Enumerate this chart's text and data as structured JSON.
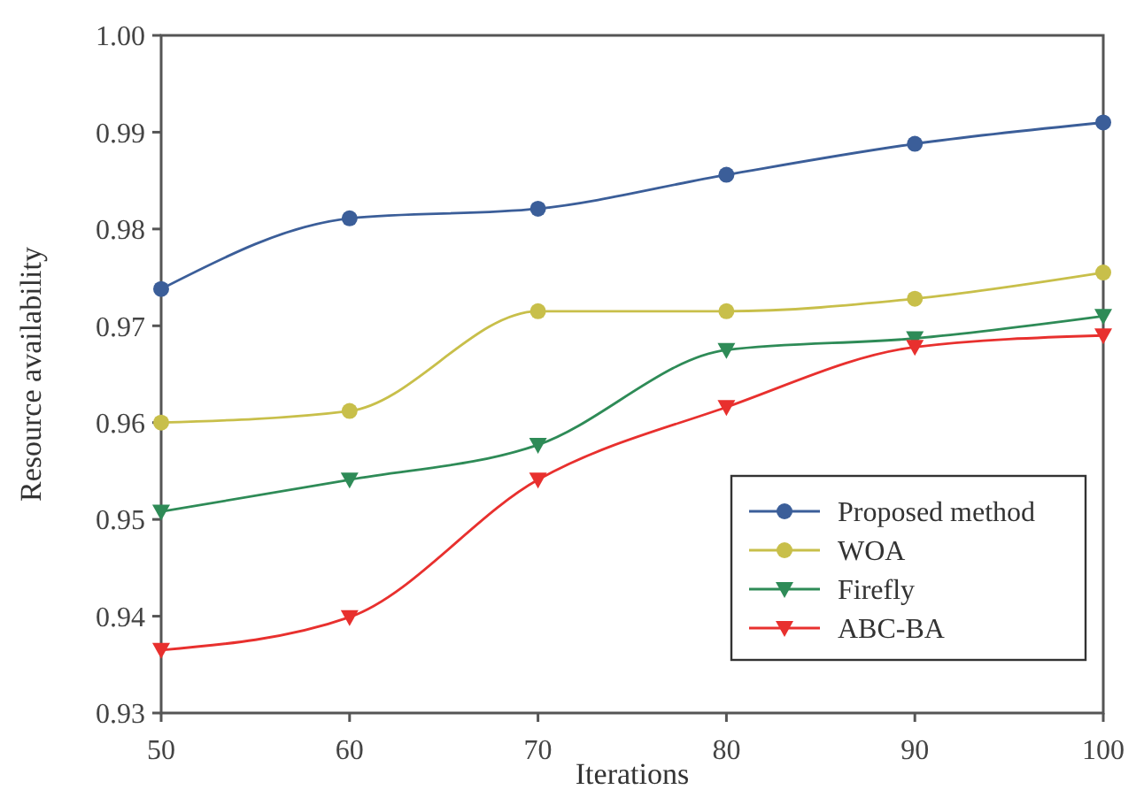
{
  "chart_data": {
    "type": "line",
    "xlabel": "Iterations",
    "ylabel": "Resource availability",
    "x": [
      50,
      60,
      70,
      80,
      90,
      100
    ],
    "xlim": [
      50,
      100
    ],
    "xticks": [
      50,
      60,
      70,
      80,
      90,
      100
    ],
    "ylim": [
      0.93,
      1.0
    ],
    "yticks": [
      {
        "value": 0.93,
        "label": "0.93"
      },
      {
        "value": 0.94,
        "label": "0.94"
      },
      {
        "value": 0.95,
        "label": "0.95"
      },
      {
        "value": 0.96,
        "label": "0.96"
      },
      {
        "value": 0.97,
        "label": "0.97"
      },
      {
        "value": 0.98,
        "label": "0.98"
      },
      {
        "value": 0.99,
        "label": "0.99"
      },
      {
        "value": 1.0,
        "label": "1.00"
      }
    ],
    "grid": false,
    "legend": "bottom right",
    "line_style": "solid",
    "series": [
      {
        "name": "Proposed method",
        "color": "#3b5e99",
        "marker": "circle",
        "values": [
          0.9738,
          0.9811,
          0.9821,
          0.9856,
          0.9888,
          0.991
        ]
      },
      {
        "name": "WOA",
        "color": "#c8bf4a",
        "marker": "circle",
        "values": [
          0.96,
          0.9612,
          0.9715,
          0.9715,
          0.9728,
          0.9755
        ]
      },
      {
        "name": "Firefly",
        "color": "#2e8b57",
        "marker": "triangle",
        "values": [
          0.9508,
          0.9541,
          0.9577,
          0.9675,
          0.9687,
          0.971
        ]
      },
      {
        "name": "ABC-BA",
        "color": "#e8302e",
        "marker": "triangle",
        "values": [
          0.9365,
          0.9399,
          0.9541,
          0.9616,
          0.9678,
          0.969
        ]
      }
    ]
  }
}
